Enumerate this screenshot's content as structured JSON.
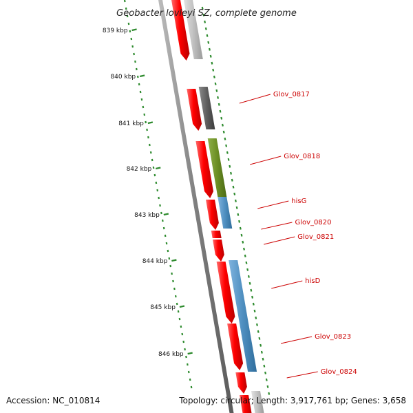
{
  "title": "Geobacter lovleyi SZ, complete genome",
  "footer": {
    "accession": "Accession: NC_010814",
    "stats": "Topology: circular; Length: 3,917,761 bp; Genes: 3,658"
  },
  "ticks": [
    "839 kbp",
    "840 kbp",
    "841 kbp",
    "842 kbp",
    "843 kbp",
    "844 kbp",
    "845 kbp",
    "846 kbp"
  ],
  "gene_labels": [
    "Glov_0817",
    "Glov_0818",
    "hisG",
    "Glov_0820",
    "Glov_0821",
    "hisD",
    "Glov_0823",
    "Glov_0824"
  ],
  "colors": {
    "cds_forward": "#ff0000",
    "cog_gray_light": "#c0c0c0",
    "cog_gray_dark": "#666666",
    "cog_green": "#6b8e23",
    "cog_blue": "#4f8fc0",
    "backbone": "#888888",
    "tick": "#2e8b2e",
    "label": "#cc0000"
  }
}
